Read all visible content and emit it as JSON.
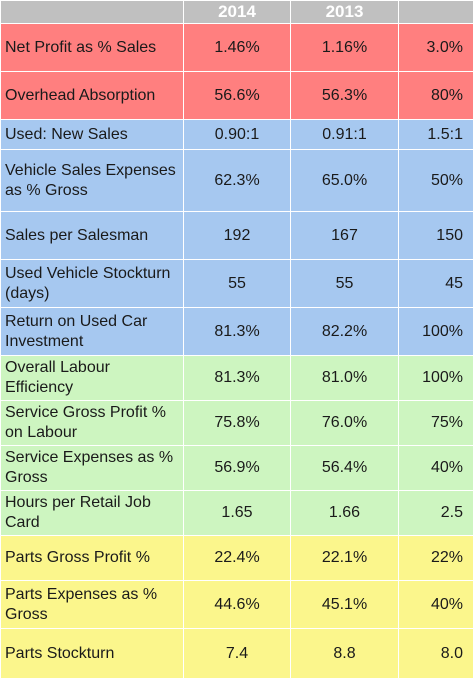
{
  "header": {
    "col_label": "",
    "col_2014": "2014",
    "col_2013": "2013",
    "col_target": ""
  },
  "colors": {
    "red": "#ff7f7f",
    "blue": "#a6c8f0",
    "green": "#cdf5c0",
    "yellow": "#fbf68c",
    "header": "#c0c0c0"
  },
  "rows": [
    {
      "group": "red",
      "label": "Net Profit as % Sales",
      "y2014": "1.46%",
      "y2013": "1.16%",
      "target": "3.0%"
    },
    {
      "group": "red",
      "label": "Overhead Absorption",
      "y2014": "56.6%",
      "y2013": "56.3%",
      "target": "80%"
    },
    {
      "group": "blue",
      "label": "Used: New Sales",
      "y2014": "0.90:1",
      "y2013": "0.91:1",
      "target": "1.5:1"
    },
    {
      "group": "blue",
      "label": "Vehicle Sales Expenses as % Gross",
      "y2014": "62.3%",
      "y2013": "65.0%",
      "target": "50%"
    },
    {
      "group": "blue",
      "label": "Sales per Salesman",
      "y2014": "192",
      "y2013": "167",
      "target": "150"
    },
    {
      "group": "blue",
      "label": "Used Vehicle Stockturn (days)",
      "y2014": "55",
      "y2013": "55",
      "target": "45"
    },
    {
      "group": "blue",
      "label": "Return on Used Car Investment",
      "y2014": "81.3%",
      "y2013": "82.2%",
      "target": "100%"
    },
    {
      "group": "green",
      "label": "Overall Labour Efficiency",
      "y2014": "81.3%",
      "y2013": "81.0%",
      "target": "100%"
    },
    {
      "group": "green",
      "label": "Service Gross Profit % on Labour",
      "y2014": "75.8%",
      "y2013": "76.0%",
      "target": "75%"
    },
    {
      "group": "green",
      "label": "Service Expenses as % Gross",
      "y2014": "56.9%",
      "y2013": "56.4%",
      "target": "40%"
    },
    {
      "group": "green",
      "label": "Hours per Retail Job Card",
      "y2014": "1.65",
      "y2013": "1.66",
      "target": "2.5"
    },
    {
      "group": "yellow",
      "label": "Parts Gross Profit %",
      "y2014": "22.4%",
      "y2013": "22.1%",
      "target": "22%"
    },
    {
      "group": "yellow",
      "label": "Parts Expenses as % Gross",
      "y2014": "44.6%",
      "y2013": "45.1%",
      "target": "40%"
    },
    {
      "group": "yellow",
      "label": "Parts Stockturn",
      "y2014": "7.4",
      "y2013": "8.8",
      "target": "8.0"
    }
  ]
}
